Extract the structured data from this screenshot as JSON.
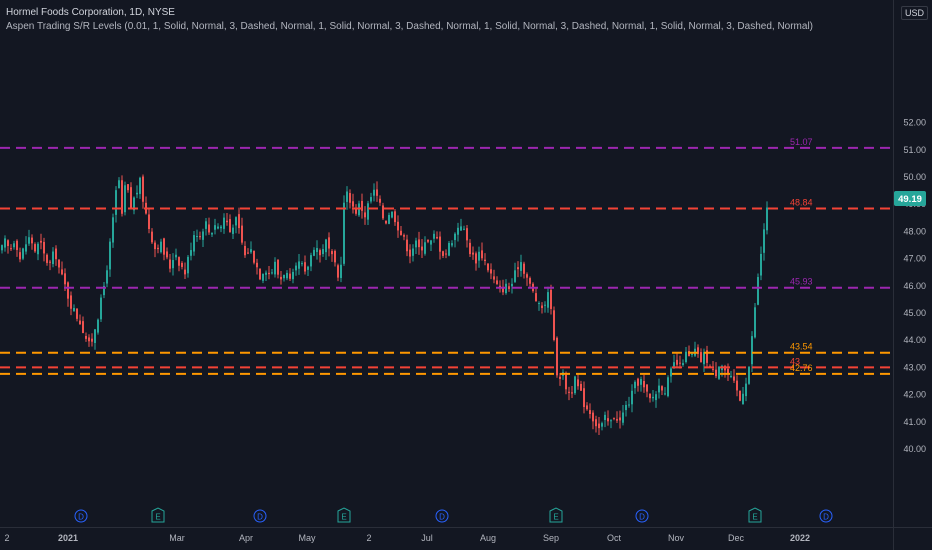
{
  "header": {
    "title": "Hormel Foods Corporation, 1D, NYSE",
    "indicator": "Aspen Trading S/R Levels (0.01, 1, Solid, Normal, 3, Dashed, Normal, 1, Solid, Normal, 3, Dashed, Normal, 1, Solid, Normal, 3, Dashed, Normal, 1, Solid, Normal, 3, Dashed, Normal)",
    "currency": "USD"
  },
  "colors": {
    "background": "#131722",
    "up": "#26a69a",
    "down": "#ef5350",
    "purple": "#9c27b0",
    "orange": "#ff9800",
    "red": "#f44336",
    "text": "#b2b5be"
  },
  "chart_data": {
    "type": "candlestick",
    "ylim": [
      39.2,
      52.35
    ],
    "y_ticks": [
      "40.00",
      "41.00",
      "42.00",
      "43.00",
      "44.00",
      "45.00",
      "46.00",
      "47.00",
      "48.00",
      "49.00",
      "50.00",
      "51.00",
      "52.00"
    ],
    "x_ticks": [
      "2",
      "2021",
      "Mar",
      "Apr",
      "May",
      "2",
      "Jul",
      "Aug",
      "Sep",
      "Oct",
      "Nov",
      "Dec",
      "2022"
    ],
    "levels": [
      {
        "value": 51.07,
        "label": "51.07",
        "color": "#9c27b0"
      },
      {
        "value": 48.84,
        "label": "48.84",
        "color": "#f44336"
      },
      {
        "value": 45.93,
        "label": "45.93",
        "color": "#9c27b0"
      },
      {
        "value": 43.54,
        "label": "43.54",
        "color": "#ff9800"
      },
      {
        "value": 43,
        "label": "43",
        "color": "#f44336"
      },
      {
        "value": 42.76,
        "label": "42.76",
        "color": "#ff9800"
      }
    ],
    "last_price": {
      "value": 49.19,
      "label": "49.19"
    },
    "events": [
      "D",
      "E",
      "D",
      "E",
      "D",
      "E",
      "D",
      "E",
      "D"
    ],
    "path_points": [
      [
        0,
        47.2
      ],
      [
        5,
        47.6
      ],
      [
        10,
        47.3
      ],
      [
        15,
        47.8
      ],
      [
        20,
        47.0
      ],
      [
        25,
        47.5
      ],
      [
        30,
        47.8
      ],
      [
        35,
        47.3
      ],
      [
        40,
        47.6
      ],
      [
        45,
        47.0
      ],
      [
        50,
        46.8
      ],
      [
        55,
        47.3
      ],
      [
        60,
        46.5
      ],
      [
        65,
        46.0
      ],
      [
        70,
        45.4
      ],
      [
        75,
        45.0
      ],
      [
        80,
        44.7
      ],
      [
        85,
        44.2
      ],
      [
        90,
        43.7
      ],
      [
        95,
        44.5
      ],
      [
        100,
        45.2
      ],
      [
        105,
        46.2
      ],
      [
        110,
        47.5
      ],
      [
        115,
        49.0
      ],
      [
        118,
        50.3
      ],
      [
        122,
        48.5
      ],
      [
        126,
        50.0
      ],
      [
        130,
        48.8
      ],
      [
        135,
        49.3
      ],
      [
        140,
        49.8
      ],
      [
        145,
        48.8
      ],
      [
        150,
        48.0
      ],
      [
        155,
        47.4
      ],
      [
        160,
        47.6
      ],
      [
        165,
        47.1
      ],
      [
        170,
        46.7
      ],
      [
        175,
        47.3
      ],
      [
        180,
        46.8
      ],
      [
        185,
        46.5
      ],
      [
        190,
        47.3
      ],
      [
        195,
        48.1
      ],
      [
        200,
        47.8
      ],
      [
        205,
        48.4
      ],
      [
        210,
        47.9
      ],
      [
        215,
        48.3
      ],
      [
        220,
        48.1
      ],
      [
        225,
        48.6
      ],
      [
        230,
        48.0
      ],
      [
        235,
        48.5
      ],
      [
        240,
        47.9
      ],
      [
        245,
        47.1
      ],
      [
        250,
        47.4
      ],
      [
        255,
        46.9
      ],
      [
        260,
        46.4
      ],
      [
        265,
        46.7
      ],
      [
        270,
        46.4
      ],
      [
        275,
        46.8
      ],
      [
        280,
        46.2
      ],
      [
        285,
        46.6
      ],
      [
        290,
        46.1
      ],
      [
        295,
        46.5
      ],
      [
        300,
        46.9
      ],
      [
        305,
        46.4
      ],
      [
        310,
        47.0
      ],
      [
        315,
        47.6
      ],
      [
        320,
        47.1
      ],
      [
        325,
        47.7
      ],
      [
        330,
        47.2
      ],
      [
        335,
        46.7
      ],
      [
        340,
        46.0
      ],
      [
        343,
        48.8
      ],
      [
        346,
        49.4
      ],
      [
        350,
        49.2
      ],
      [
        355,
        48.7
      ],
      [
        360,
        49.0
      ],
      [
        365,
        48.6
      ],
      [
        370,
        49.2
      ],
      [
        375,
        49.5
      ],
      [
        380,
        48.9
      ],
      [
        385,
        48.3
      ],
      [
        390,
        48.8
      ],
      [
        395,
        48.5
      ],
      [
        400,
        48.0
      ],
      [
        405,
        47.6
      ],
      [
        410,
        47.2
      ],
      [
        415,
        47.6
      ],
      [
        420,
        47.3
      ],
      [
        425,
        47.7
      ],
      [
        430,
        47.5
      ],
      [
        435,
        47.9
      ],
      [
        440,
        47.4
      ],
      [
        445,
        47.1
      ],
      [
        450,
        47.6
      ],
      [
        455,
        47.9
      ],
      [
        460,
        48.4
      ],
      [
        465,
        47.9
      ],
      [
        470,
        47.3
      ],
      [
        475,
        46.9
      ],
      [
        480,
        47.3
      ],
      [
        485,
        46.9
      ],
      [
        490,
        46.5
      ],
      [
        495,
        46.1
      ],
      [
        500,
        45.8
      ],
      [
        505,
        46.0
      ],
      [
        510,
        45.9
      ],
      [
        515,
        46.4
      ],
      [
        520,
        47.0
      ],
      [
        525,
        46.5
      ],
      [
        530,
        46.0
      ],
      [
        535,
        45.6
      ],
      [
        540,
        45.1
      ],
      [
        545,
        45.4
      ],
      [
        550,
        45.8
      ],
      [
        555,
        43.4
      ],
      [
        558,
        42.6
      ],
      [
        562,
        42.8
      ],
      [
        566,
        42.3
      ],
      [
        570,
        42.0
      ],
      [
        575,
        42.5
      ],
      [
        580,
        42.1
      ],
      [
        585,
        41.6
      ],
      [
        590,
        41.4
      ],
      [
        595,
        41.0
      ],
      [
        600,
        40.7
      ],
      [
        605,
        41.1
      ],
      [
        610,
        40.9
      ],
      [
        615,
        41.3
      ],
      [
        620,
        41.0
      ],
      [
        625,
        41.5
      ],
      [
        630,
        41.8
      ],
      [
        635,
        42.3
      ],
      [
        640,
        42.6
      ],
      [
        645,
        42.1
      ],
      [
        650,
        41.8
      ],
      [
        655,
        42.0
      ],
      [
        660,
        42.4
      ],
      [
        665,
        42.2
      ],
      [
        670,
        42.7
      ],
      [
        675,
        43.2
      ],
      [
        680,
        43.0
      ],
      [
        685,
        43.5
      ],
      [
        690,
        43.3
      ],
      [
        695,
        43.6
      ],
      [
        700,
        43.2
      ],
      [
        705,
        43.5
      ],
      [
        710,
        43.0
      ],
      [
        715,
        42.7
      ],
      [
        720,
        43.3
      ],
      [
        725,
        42.9
      ],
      [
        730,
        42.6
      ],
      [
        735,
        42.3
      ],
      [
        740,
        41.8
      ],
      [
        745,
        42.4
      ],
      [
        750,
        43.2
      ],
      [
        753,
        44.5
      ],
      [
        756,
        45.6
      ],
      [
        759,
        46.6
      ],
      [
        762,
        47.5
      ],
      [
        765,
        48.4
      ],
      [
        768,
        49.0
      ]
    ]
  }
}
